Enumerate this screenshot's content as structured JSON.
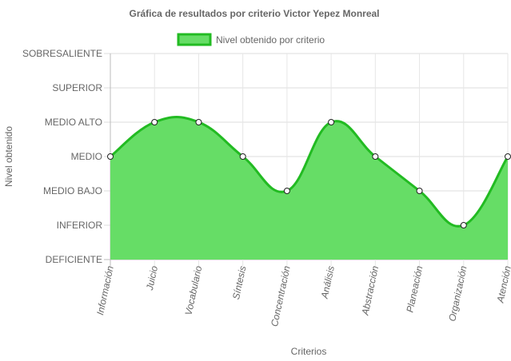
{
  "chart_data": {
    "type": "area",
    "title": "Gráfica de resultados por criterio Victor Yepez Monreal",
    "xlabel": "Criterios",
    "ylabel": "Nivel obtenido",
    "categories": [
      "Información",
      "Juicio",
      "Vocabulario",
      "Síntesis",
      "Concentración",
      "Análisis",
      "Abstracción",
      "Planeación",
      "Organización",
      "Atención"
    ],
    "levels": [
      "DEFICIENTE",
      "INFERIOR",
      "MEDIO BAJO",
      "MEDIO",
      "MEDIO ALTO",
      "SUPERIOR",
      "SOBRESALIENTE"
    ],
    "series": [
      {
        "name": "Nivel obtenido por criterio",
        "values": [
          3,
          4,
          4,
          3,
          2,
          4,
          3,
          2,
          1,
          3
        ],
        "fill_color": "#66dd66",
        "line_color": "#22bb22"
      }
    ],
    "ylim": [
      0,
      6
    ],
    "grid": true,
    "legend_position": "top"
  }
}
